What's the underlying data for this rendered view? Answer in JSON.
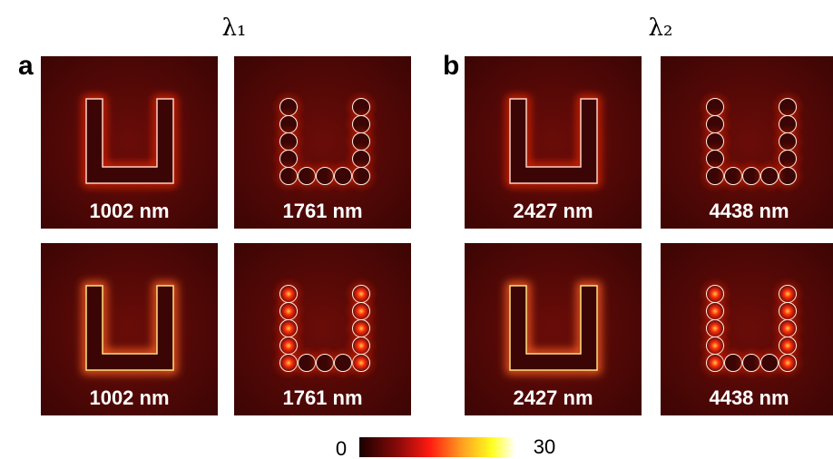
{
  "figure": {
    "groups": [
      {
        "label": "a",
        "wavelength": "λ₁",
        "panels": [
          [
            "1002 nm",
            "1761 nm"
          ],
          [
            "1002 nm",
            "1761 nm"
          ]
        ]
      },
      {
        "label": "b",
        "wavelength": "λ₂",
        "panels": [
          [
            "2427 nm",
            "4438 nm"
          ],
          [
            "2427 nm",
            "4438 nm"
          ]
        ]
      }
    ],
    "colorbar": {
      "min": "0",
      "max": "30"
    }
  }
}
